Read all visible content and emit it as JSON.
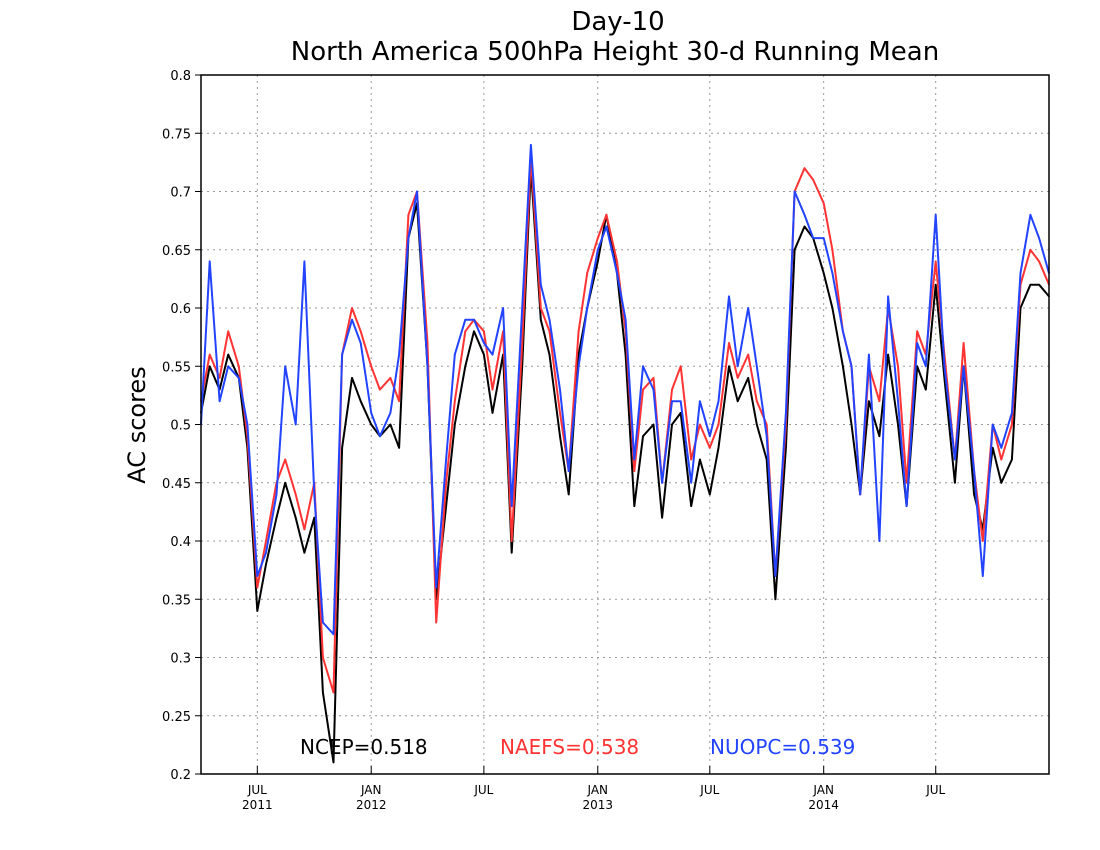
{
  "chart_data": {
    "type": "line",
    "title": "Day-10",
    "subtitle": "North America 500hPa Height 30-d Running Mean",
    "ylabel": "AC scores",
    "xlabel": "",
    "ylim": [
      0.2,
      0.8
    ],
    "yticks": [
      "0.2",
      "0.25",
      "0.3",
      "0.35",
      "0.4",
      "0.45",
      "0.5",
      "0.55",
      "0.6",
      "0.65",
      "0.7",
      "0.75",
      "0.8"
    ],
    "xlim": [
      "2011-04-01",
      "2014-12-31"
    ],
    "xticks": [
      {
        "date": "2011-07-01",
        "label": "JUL",
        "year": "2011"
      },
      {
        "date": "2012-01-01",
        "label": "JAN",
        "year": "2012"
      },
      {
        "date": "2012-07-01",
        "label": "JUL",
        "year": ""
      },
      {
        "date": "2013-01-01",
        "label": "JAN",
        "year": "2013"
      },
      {
        "date": "2013-07-01",
        "label": "JUL",
        "year": ""
      },
      {
        "date": "2014-01-01",
        "label": "JAN",
        "year": "2014"
      },
      {
        "date": "2014-07-01",
        "label": "JUL",
        "year": ""
      }
    ],
    "grid": true,
    "legend_position": "bottom",
    "series": [
      {
        "name": "NCEP",
        "color": "#000000",
        "score_label": "NCEP=0.518",
        "x": [
          "2011-04-01",
          "2011-04-15",
          "2011-05-01",
          "2011-05-15",
          "2011-06-01",
          "2011-06-15",
          "2011-07-01",
          "2011-07-15",
          "2011-08-01",
          "2011-08-15",
          "2011-09-01",
          "2011-09-15",
          "2011-10-01",
          "2011-10-15",
          "2011-11-01",
          "2011-11-15",
          "2011-12-01",
          "2011-12-15",
          "2012-01-01",
          "2012-01-15",
          "2012-02-01",
          "2012-02-15",
          "2012-03-01",
          "2012-03-15",
          "2012-04-01",
          "2012-04-15",
          "2012-05-01",
          "2012-05-15",
          "2012-06-01",
          "2012-06-15",
          "2012-07-01",
          "2012-07-15",
          "2012-08-01",
          "2012-08-15",
          "2012-09-01",
          "2012-09-15",
          "2012-10-01",
          "2012-10-15",
          "2012-11-01",
          "2012-11-15",
          "2012-12-01",
          "2012-12-15",
          "2013-01-01",
          "2013-01-15",
          "2013-02-01",
          "2013-02-15",
          "2013-03-01",
          "2013-03-15",
          "2013-04-01",
          "2013-04-15",
          "2013-05-01",
          "2013-05-15",
          "2013-06-01",
          "2013-06-15",
          "2013-07-01",
          "2013-07-15",
          "2013-08-01",
          "2013-08-15",
          "2013-09-01",
          "2013-09-15",
          "2013-10-01",
          "2013-10-15",
          "2013-11-01",
          "2013-11-15",
          "2013-12-01",
          "2013-12-15",
          "2014-01-01",
          "2014-01-15",
          "2014-02-01",
          "2014-02-15",
          "2014-03-01",
          "2014-03-15",
          "2014-04-01",
          "2014-04-15",
          "2014-05-01",
          "2014-05-15",
          "2014-06-01",
          "2014-06-15",
          "2014-07-01",
          "2014-07-15",
          "2014-08-01",
          "2014-08-15",
          "2014-09-01",
          "2014-09-15",
          "2014-10-01",
          "2014-10-15",
          "2014-11-01",
          "2014-11-15",
          "2014-12-01",
          "2014-12-15",
          "2014-12-31"
        ],
        "values": [
          0.51,
          0.55,
          0.53,
          0.56,
          0.54,
          0.48,
          0.34,
          0.38,
          0.42,
          0.45,
          0.42,
          0.39,
          0.42,
          0.27,
          0.21,
          0.48,
          0.54,
          0.52,
          0.5,
          0.49,
          0.5,
          0.48,
          0.66,
          0.69,
          0.55,
          0.35,
          0.43,
          0.5,
          0.55,
          0.58,
          0.56,
          0.51,
          0.56,
          0.39,
          0.55,
          0.72,
          0.59,
          0.56,
          0.49,
          0.44,
          0.56,
          0.6,
          0.64,
          0.68,
          0.63,
          0.56,
          0.43,
          0.49,
          0.5,
          0.42,
          0.5,
          0.51,
          0.43,
          0.47,
          0.44,
          0.48,
          0.55,
          0.52,
          0.54,
          0.5,
          0.47,
          0.35,
          0.48,
          0.65,
          0.67,
          0.66,
          0.63,
          0.6,
          0.55,
          0.5,
          0.44,
          0.52,
          0.49,
          0.56,
          0.5,
          0.43,
          0.55,
          0.53,
          0.62,
          0.54,
          0.45,
          0.55,
          0.44,
          0.41,
          0.48,
          0.45,
          0.47,
          0.6,
          0.62,
          0.62,
          0.61
        ]
      },
      {
        "name": "NAEFS",
        "color": "#ff3333",
        "score_label": "NAEFS=0.538",
        "x": [
          "2011-04-01",
          "2011-04-15",
          "2011-05-01",
          "2011-05-15",
          "2011-06-01",
          "2011-06-15",
          "2011-07-01",
          "2011-07-15",
          "2011-08-01",
          "2011-08-15",
          "2011-09-01",
          "2011-09-15",
          "2011-10-01",
          "2011-10-15",
          "2011-11-01",
          "2011-11-15",
          "2011-12-01",
          "2011-12-15",
          "2012-01-01",
          "2012-01-15",
          "2012-02-01",
          "2012-02-15",
          "2012-03-01",
          "2012-03-15",
          "2012-04-01",
          "2012-04-15",
          "2012-05-01",
          "2012-05-15",
          "2012-06-01",
          "2012-06-15",
          "2012-07-01",
          "2012-07-15",
          "2012-08-01",
          "2012-08-15",
          "2012-09-01",
          "2012-09-15",
          "2012-10-01",
          "2012-10-15",
          "2012-11-01",
          "2012-11-15",
          "2012-12-01",
          "2012-12-15",
          "2013-01-01",
          "2013-01-15",
          "2013-02-01",
          "2013-02-15",
          "2013-03-01",
          "2013-03-15",
          "2013-04-01",
          "2013-04-15",
          "2013-05-01",
          "2013-05-15",
          "2013-06-01",
          "2013-06-15",
          "2013-07-01",
          "2013-07-15",
          "2013-08-01",
          "2013-08-15",
          "2013-09-01",
          "2013-09-15",
          "2013-10-01",
          "2013-10-15",
          "2013-11-01",
          "2013-11-15",
          "2013-12-01",
          "2013-12-15",
          "2014-01-01",
          "2014-01-15",
          "2014-02-01",
          "2014-02-15",
          "2014-03-01",
          "2014-03-15",
          "2014-04-01",
          "2014-04-15",
          "2014-05-01",
          "2014-05-15",
          "2014-06-01",
          "2014-06-15",
          "2014-07-01",
          "2014-07-15",
          "2014-08-01",
          "2014-08-15",
          "2014-09-01",
          "2014-09-15",
          "2014-10-01",
          "2014-10-15",
          "2014-11-01",
          "2014-11-15",
          "2014-12-01",
          "2014-12-15",
          "2014-12-31"
        ],
        "values": [
          0.52,
          0.56,
          0.54,
          0.58,
          0.55,
          0.49,
          0.36,
          0.4,
          0.45,
          0.47,
          0.44,
          0.41,
          0.45,
          0.3,
          0.27,
          0.56,
          0.6,
          0.58,
          0.55,
          0.53,
          0.54,
          0.52,
          0.68,
          0.7,
          0.57,
          0.33,
          0.45,
          0.52,
          0.58,
          0.59,
          0.58,
          0.53,
          0.58,
          0.4,
          0.57,
          0.73,
          0.6,
          0.58,
          0.51,
          0.46,
          0.58,
          0.63,
          0.66,
          0.68,
          0.64,
          0.58,
          0.46,
          0.53,
          0.54,
          0.45,
          0.53,
          0.55,
          0.47,
          0.5,
          0.48,
          0.5,
          0.57,
          0.54,
          0.56,
          0.52,
          0.5,
          0.37,
          0.5,
          0.7,
          0.72,
          0.71,
          0.69,
          0.65,
          0.58,
          0.55,
          0.44,
          0.55,
          0.52,
          0.6,
          0.55,
          0.45,
          0.58,
          0.56,
          0.64,
          0.56,
          0.47,
          0.57,
          0.46,
          0.4,
          0.5,
          0.47,
          0.5,
          0.62,
          0.65,
          0.64,
          0.62
        ]
      },
      {
        "name": "NUOPC",
        "color": "#2244ff",
        "score_label": "NUOPC=0.539",
        "x": [
          "2011-04-01",
          "2011-04-15",
          "2011-05-01",
          "2011-05-15",
          "2011-06-01",
          "2011-06-15",
          "2011-07-01",
          "2011-07-15",
          "2011-08-01",
          "2011-08-15",
          "2011-09-01",
          "2011-09-15",
          "2011-10-01",
          "2011-10-15",
          "2011-11-01",
          "2011-11-15",
          "2011-12-01",
          "2011-12-15",
          "2012-01-01",
          "2012-01-15",
          "2012-02-01",
          "2012-02-15",
          "2012-03-01",
          "2012-03-15",
          "2012-04-01",
          "2012-04-15",
          "2012-05-01",
          "2012-05-15",
          "2012-06-01",
          "2012-06-15",
          "2012-07-01",
          "2012-07-15",
          "2012-08-01",
          "2012-08-15",
          "2012-09-01",
          "2012-09-15",
          "2012-10-01",
          "2012-10-15",
          "2012-11-01",
          "2012-11-15",
          "2012-12-01",
          "2012-12-15",
          "2013-01-01",
          "2013-01-15",
          "2013-02-01",
          "2013-02-15",
          "2013-03-01",
          "2013-03-15",
          "2013-04-01",
          "2013-04-15",
          "2013-05-01",
          "2013-05-15",
          "2013-06-01",
          "2013-06-15",
          "2013-07-01",
          "2013-07-15",
          "2013-08-01",
          "2013-08-15",
          "2013-09-01",
          "2013-09-15",
          "2013-10-01",
          "2013-10-15",
          "2013-11-01",
          "2013-11-15",
          "2013-12-01",
          "2013-12-15",
          "2014-01-01",
          "2014-01-15",
          "2014-02-01",
          "2014-02-15",
          "2014-03-01",
          "2014-03-15",
          "2014-04-01",
          "2014-04-15",
          "2014-05-01",
          "2014-05-15",
          "2014-06-01",
          "2014-06-15",
          "2014-07-01",
          "2014-07-15",
          "2014-08-01",
          "2014-08-15",
          "2014-09-01",
          "2014-09-15",
          "2014-10-01",
          "2014-10-15",
          "2014-11-01",
          "2014-11-15",
          "2014-12-01",
          "2014-12-15",
          "2014-12-31"
        ],
        "values": [
          0.5,
          0.64,
          0.52,
          0.55,
          0.54,
          0.5,
          0.37,
          0.39,
          0.44,
          0.55,
          0.5,
          0.64,
          0.44,
          0.33,
          0.32,
          0.56,
          0.59,
          0.57,
          0.51,
          0.49,
          0.51,
          0.56,
          0.66,
          0.7,
          0.55,
          0.36,
          0.47,
          0.56,
          0.59,
          0.59,
          0.57,
          0.56,
          0.6,
          0.43,
          0.6,
          0.74,
          0.62,
          0.59,
          0.53,
          0.46,
          0.55,
          0.6,
          0.65,
          0.67,
          0.63,
          0.59,
          0.47,
          0.55,
          0.53,
          0.45,
          0.52,
          0.52,
          0.45,
          0.52,
          0.49,
          0.52,
          0.61,
          0.55,
          0.6,
          0.55,
          0.49,
          0.37,
          0.51,
          0.7,
          0.68,
          0.66,
          0.66,
          0.63,
          0.58,
          0.55,
          0.44,
          0.56,
          0.4,
          0.61,
          0.52,
          0.43,
          0.57,
          0.55,
          0.68,
          0.55,
          0.47,
          0.55,
          0.46,
          0.37,
          0.5,
          0.48,
          0.51,
          0.63,
          0.68,
          0.66,
          0.63
        ]
      }
    ]
  }
}
